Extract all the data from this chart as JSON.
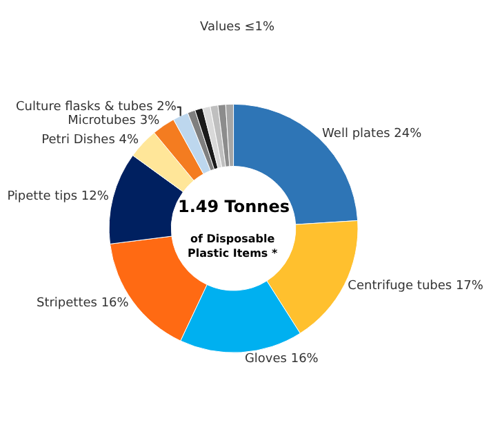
{
  "chart_data": {
    "type": "donut",
    "categories": [
      "Well plates",
      "Centrifuge tubes",
      "Gloves",
      "Stripettes",
      "Pipette tips",
      "Petri Dishes",
      "Microtubes",
      "Culture flasks & tubes",
      null,
      null,
      null,
      null,
      null,
      null
    ],
    "values": [
      24,
      17,
      16,
      16,
      12,
      4,
      3,
      2,
      1,
      1,
      1,
      1,
      1,
      1
    ],
    "colors": [
      "#2e75b6",
      "#ffc02e",
      "#00b0f0",
      "#ff6a13",
      "#002060",
      "#ffe699",
      "#f47c20",
      "#bdd7ee",
      "#7f7f7f",
      "#1a1a1a",
      "#d9d9d9",
      "#bfbfbf",
      "#8c8c8c",
      "#a6a6a6"
    ],
    "value_labels": [
      "24%",
      "17%",
      "16%",
      "16%",
      "12%",
      "4%",
      "3%",
      "2%",
      null,
      null,
      null,
      null,
      null,
      null
    ],
    "annotations": [
      "1.49 Tonnes",
      "of Disposable\nPlastic Items *",
      "Values ≤1%"
    ],
    "legend": false
  }
}
